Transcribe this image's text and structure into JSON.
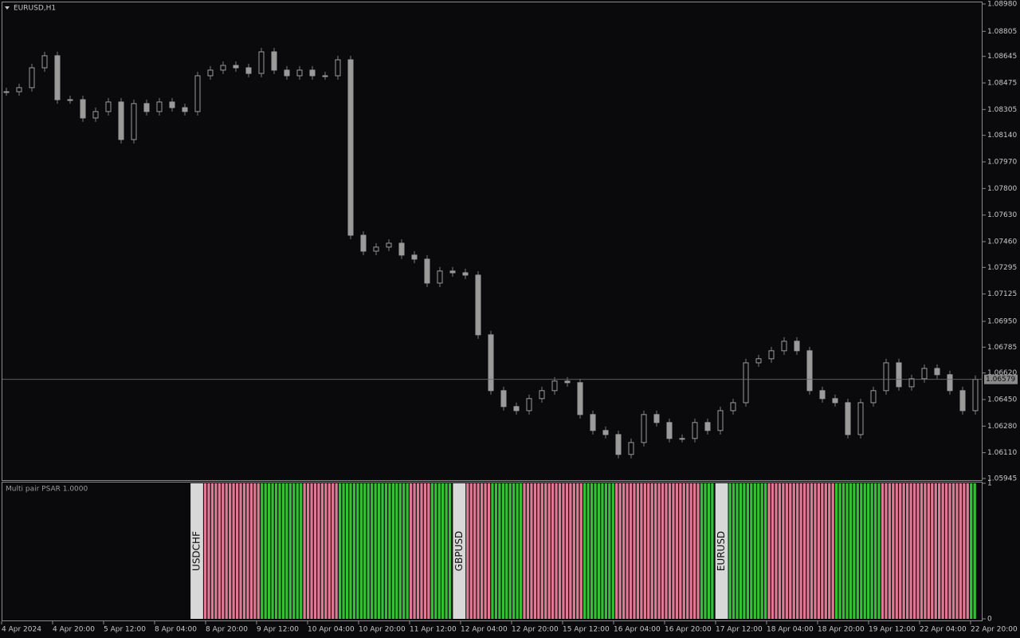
{
  "chart_data": {
    "type": "candlestick",
    "symbol": "EURUSD,H1",
    "close": [
      1.08419,
      1.08445,
      1.08572,
      1.08649,
      1.08368,
      1.08368,
      1.08251,
      1.08292,
      1.08353,
      1.08113,
      1.08343,
      1.08292,
      1.08353,
      1.08317,
      1.08292,
      1.08521,
      1.08557,
      1.08587,
      1.08572,
      1.08536,
      1.08674,
      1.08557,
      1.08521,
      1.08557,
      1.08521,
      1.08521,
      1.08623,
      1.07501,
      1.07399,
      1.07425,
      1.0745,
      1.07374,
      1.07348,
      1.07195,
      1.07272,
      1.07261,
      1.07246,
      1.06864,
      1.06507,
      1.06405,
      1.06379,
      1.06456,
      1.06507,
      1.06568,
      1.06558,
      1.06354,
      1.06252,
      1.06226,
      1.06099,
      1.06175,
      1.06354,
      1.06303,
      1.06201,
      1.06201,
      1.06303,
      1.06252,
      1.06379,
      1.0643,
      1.06685,
      1.06711,
      1.06762,
      1.06823,
      1.06762,
      1.06507,
      1.06456,
      1.0643,
      1.06226,
      1.0643,
      1.06507,
      1.06685,
      1.06532,
      1.06583,
      1.06649,
      1.06609,
      1.06507,
      1.06379,
      1.06579
    ],
    "ylim": [
      1.05945,
      1.0898
    ],
    "yticks": [
      {
        "value": 1.0898,
        "label": "1.08980"
      },
      {
        "value": 1.08805,
        "label": "1.08805"
      },
      {
        "value": 1.08645,
        "label": "1.08645"
      },
      {
        "value": 1.08475,
        "label": "1.08475"
      },
      {
        "value": 1.08305,
        "label": "1.08305"
      },
      {
        "value": 1.0814,
        "label": "1.08140"
      },
      {
        "value": 1.0797,
        "label": "1.07970"
      },
      {
        "value": 1.078,
        "label": "1.07800"
      },
      {
        "value": 1.0763,
        "label": "1.07630"
      },
      {
        "value": 1.0746,
        "label": "1.07460"
      },
      {
        "value": 1.07295,
        "label": "1.07295"
      },
      {
        "value": 1.07125,
        "label": "1.07125"
      },
      {
        "value": 1.0695,
        "label": "1.06950"
      },
      {
        "value": 1.06785,
        "label": "1.06785"
      },
      {
        "value": 1.0662,
        "label": "1.06620"
      },
      {
        "value": 1.0645,
        "label": "1.06450"
      },
      {
        "value": 1.0628,
        "label": "1.06280"
      },
      {
        "value": 1.0611,
        "label": "1.06110"
      },
      {
        "value": 1.05945,
        "label": "1.05945"
      }
    ],
    "current_price": 1.06579,
    "x_labels": [
      "4 Apr 2024",
      "4 Apr 20:00",
      "5 Apr 12:00",
      "8 Apr 04:00",
      "8 Apr 20:00",
      "9 Apr 12:00",
      "10 Apr 04:00",
      "10 Apr 20:00",
      "11 Apr 12:00",
      "12 Apr 04:00",
      "12 Apr 20:00",
      "15 Apr 12:00",
      "16 Apr 04:00",
      "16 Apr 20:00",
      "17 Apr 12:00",
      "18 Apr 04:00",
      "18 Apr 20:00",
      "19 Apr 12:00",
      "22 Apr 04:00",
      "22 Apr 20:00"
    ],
    "indicator": {
      "name": "Multi pair PSAR 1.0000",
      "ylim": [
        0,
        1
      ],
      "yticks": [
        1,
        0
      ],
      "runs": [
        {
          "color": "#d8d8d8",
          "bars": 4,
          "label": "USDCHF"
        },
        {
          "color": "#e07a94",
          "bars": 16
        },
        {
          "color": "#33c233",
          "bars": 12
        },
        {
          "color": "#e07a94",
          "bars": 10
        },
        {
          "color": "#33c233",
          "bars": 20
        },
        {
          "color": "#e07a94",
          "bars": 6
        },
        {
          "color": "#33c233",
          "bars": 6
        },
        {
          "color": "#d8d8d8",
          "bars": 4,
          "label": "GBPUSD"
        },
        {
          "color": "#e07a94",
          "bars": 7
        },
        {
          "color": "#33c233",
          "bars": 9
        },
        {
          "color": "#e07a94",
          "bars": 17
        },
        {
          "color": "#33c233",
          "bars": 9
        },
        {
          "color": "#e07a94",
          "bars": 24
        },
        {
          "color": "#33c233",
          "bars": 4
        },
        {
          "color": "#d8d8d8",
          "bars": 4,
          "label": "EURUSD"
        },
        {
          "color": "#33c233",
          "bars": 11
        },
        {
          "color": "#e07a94",
          "bars": 19
        },
        {
          "color": "#33c233",
          "bars": 13
        },
        {
          "color": "#e07a94",
          "bars": 25
        },
        {
          "color": "#33c233",
          "bars": 2
        }
      ]
    }
  }
}
